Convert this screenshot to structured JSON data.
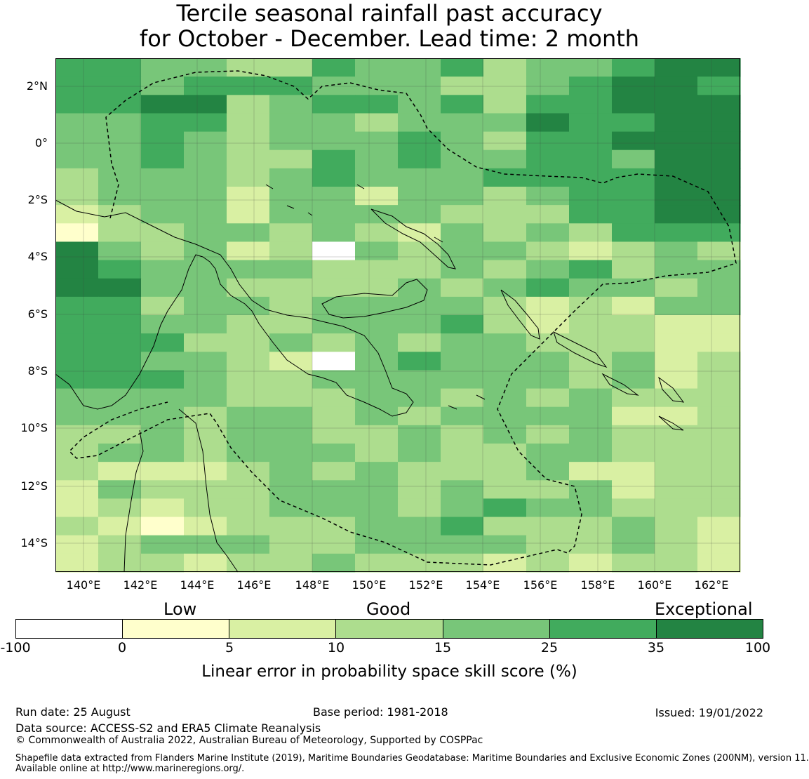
{
  "title": {
    "line1": "Tercile seasonal rainfall past accuracy",
    "line2": "for October - December. Lead time: 2 month"
  },
  "map": {
    "lat_labels": [
      "2°N",
      "0°",
      "2°S",
      "4°S",
      "6°S",
      "8°S",
      "10°S",
      "12°S",
      "14°S"
    ],
    "lon_labels": [
      "140°E",
      "142°E",
      "144°E",
      "146°E",
      "148°E",
      "150°E",
      "152°E",
      "154°E",
      "156°E",
      "158°E",
      "160°E",
      "162°E"
    ],
    "colormap": [
      "#ffffff",
      "#ffffcc",
      "#d9f0a3",
      "#addd8e",
      "#78c679",
      "#41ab5d",
      "#238443"
    ],
    "grid_rows": [
      "5544335445344566",
      "5545554443345665",
      "5566345545355666",
      "4455344344465566",
      "4454344454355666",
      "4454335454455466",
      "3444345444555566",
      "3444244244345566",
      "2344244443335566",
      "1334434324343555",
      "6434230434432343",
      "6544443334345344",
      "6644333343454434",
      "5534434444323244",
      "5544334445323322",
      "5553343434433322",
      "5544320454443423",
      "5554334444443423",
      "4444333443434333",
      "4443443434444223",
      "3343443343434333",
      "3443444343344333",
      "3222343433342233",
      "2433344434334233",
      "2323344434544333",
      "3212333445333432",
      "2344433444433432",
      "2332334333232332"
    ],
    "cell_colors": [
      "#78c679",
      "#78c679",
      "#addd8e",
      "#addd8e",
      "#41ab5d",
      "#41ab5d",
      "#78c679",
      "#41ab5d",
      "#41ab5d",
      "#41ab5d",
      "#78c679",
      "#41ab5d",
      "#78c679",
      "#addd8e",
      "#addd8e",
      "#78c679",
      "#78c679",
      "#78c679",
      "#78c679",
      "#78c679",
      "#d9f0a3",
      "#78c679",
      "#78c679",
      "#78c679",
      "#78c679",
      "#78c679",
      "#78c679",
      "#41ab5d",
      "#41ab5d",
      "#238443",
      "#41ab5d",
      "#41ab5d",
      "#41ab5d",
      "#238443",
      "#238443",
      "#238443",
      "#238443"
    ]
  },
  "colorbar": {
    "category_labels": [
      "Low",
      "Good",
      "Exceptional"
    ],
    "ticks": [
      "-100",
      "0",
      "5",
      "10",
      "15",
      "25",
      "35",
      "100"
    ],
    "colors": [
      "#ffffff",
      "#ffffcc",
      "#d9f0a3",
      "#addd8e",
      "#78c679",
      "#41ab5d",
      "#238443"
    ],
    "label": "Linear error in probability space skill score (%)"
  },
  "footer": {
    "run_date": "Run date: 25 August",
    "base_period": "Base period: 1981-2018",
    "issued": "Issued: 19/01/2022",
    "data_source": "Data source: ACCESS-S2 and ERA5 Climate Reanalysis",
    "copyright": "© Commonwealth of Australia 2022, Australian Bureau of Meteorology, Supported by COSPPac",
    "shapefile_line1": "Shapefile data extracted from Flanders Marine Institute (2019), Maritime Boundaries Geodatabase: Maritime Boundaries and Exclusive Economic Zones (200NM), version 11.",
    "shapefile_line2": "Available online at http://www.marineregions.org/."
  }
}
